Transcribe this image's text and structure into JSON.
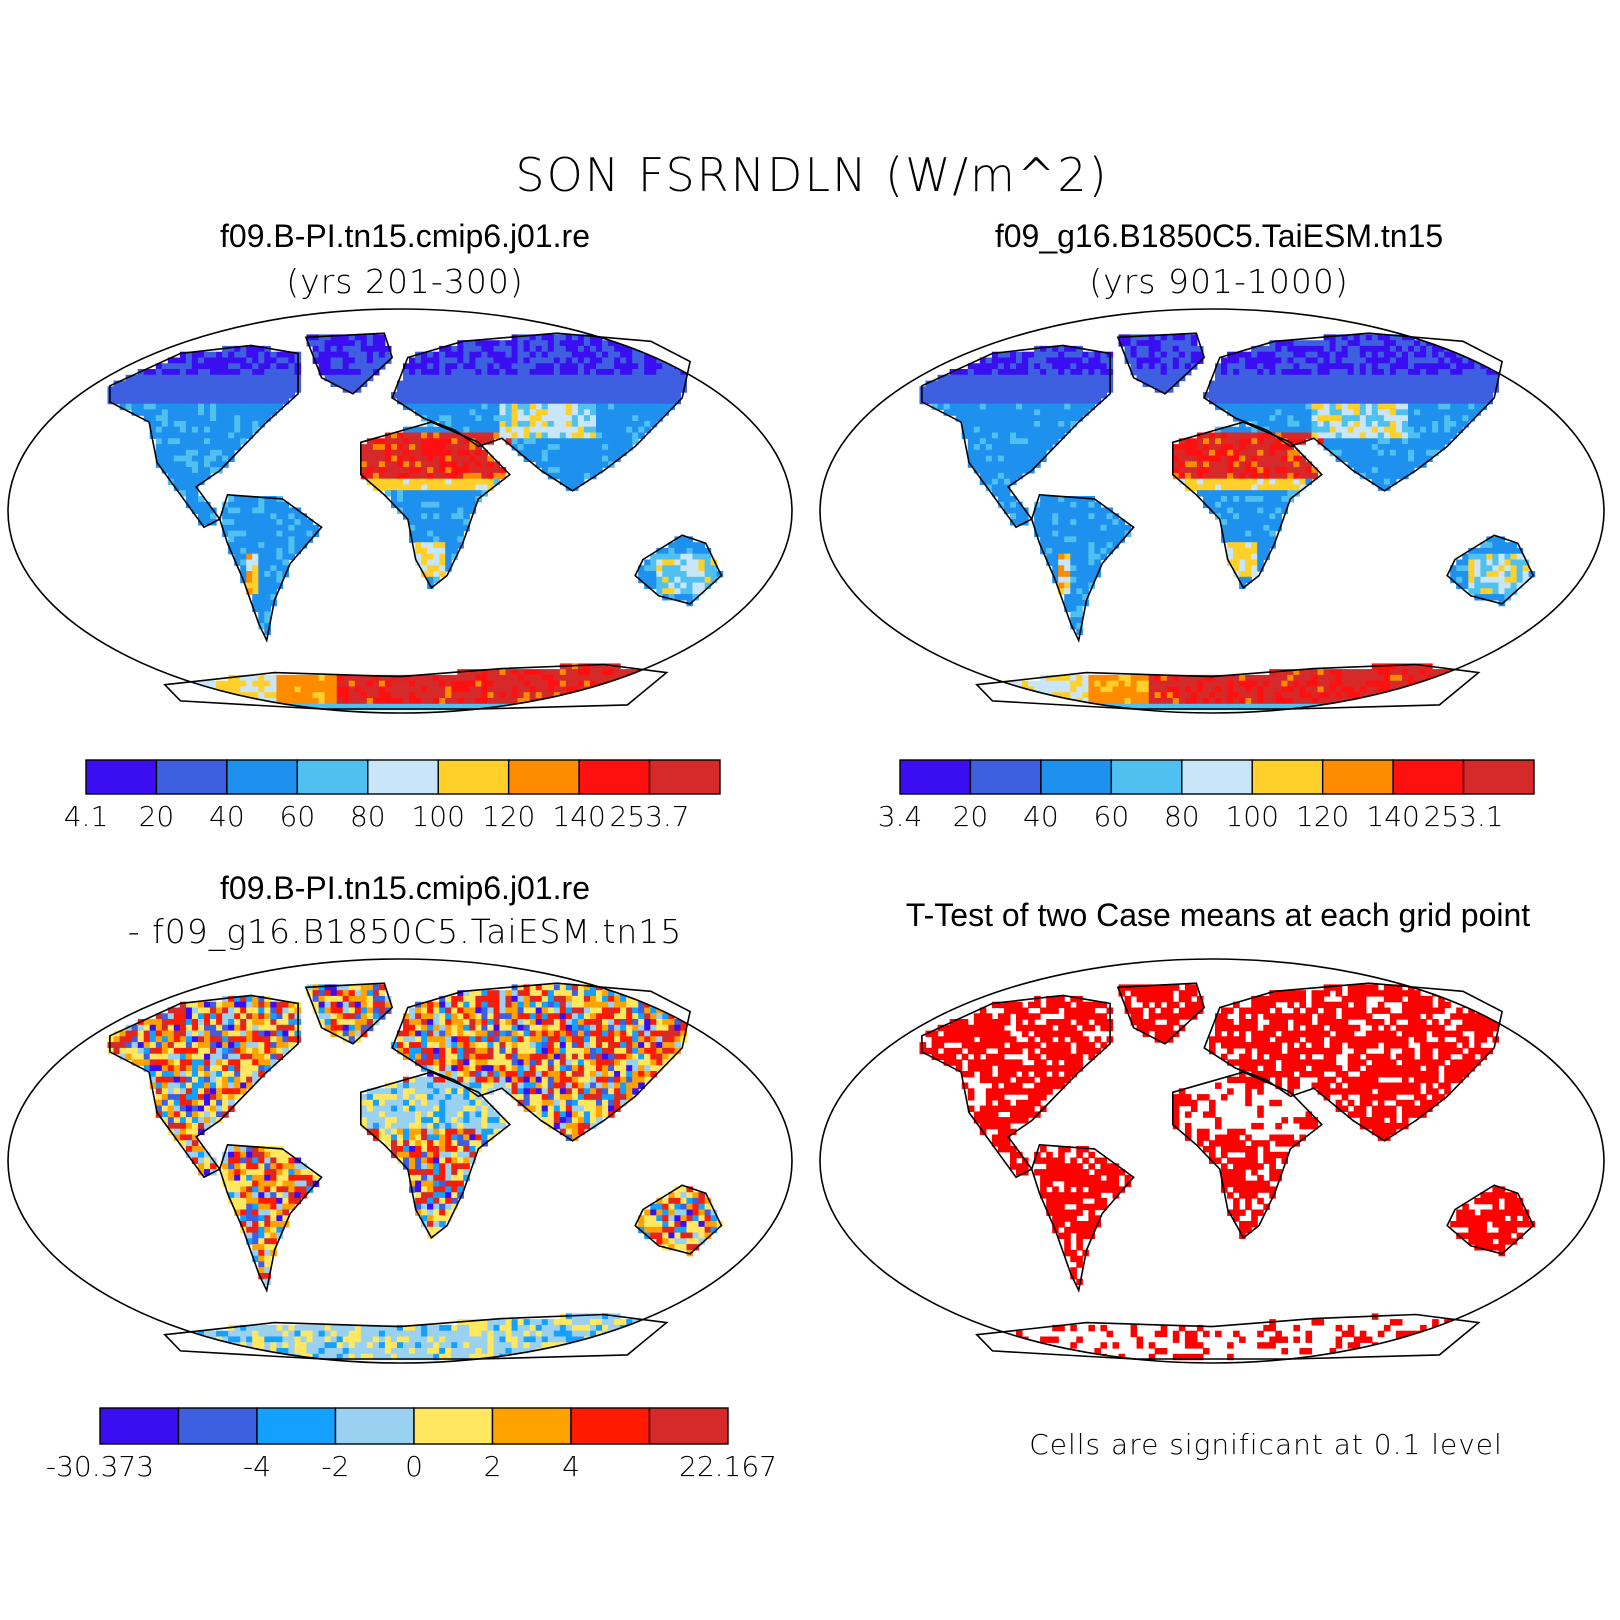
{
  "figure": {
    "title": "SON FSRNDLN (W/m^2)"
  },
  "panels": {
    "case1": {
      "title": "f09.B-PI.tn15.cmip6.j01.re",
      "subtitle": "(yrs 201-300)",
      "colorbar": {
        "colors": [
          "#3b0ef2",
          "#3d5fe0",
          "#1e90ee",
          "#4fc0f0",
          "#c8e6f7",
          "#ffd02a",
          "#ff8c00",
          "#ff1010",
          "#d62a2a"
        ],
        "ticks": [
          "4.1",
          "20",
          "40",
          "60",
          "80",
          "100",
          "120",
          "140",
          "253.7"
        ]
      }
    },
    "case2": {
      "title": "f09_g16.B1850C5.TaiESM.tn15",
      "subtitle": "(yrs 901-1000)",
      "colorbar": {
        "colors": [
          "#3b0ef2",
          "#3d5fe0",
          "#1e90ee",
          "#4fc0f0",
          "#c8e6f7",
          "#ffd02a",
          "#ff8c00",
          "#ff1010",
          "#d62a2a"
        ],
        "ticks": [
          "3.4",
          "20",
          "40",
          "60",
          "80",
          "100",
          "120",
          "140",
          "253.1"
        ]
      }
    },
    "diff": {
      "title": "f09.B-PI.tn15.cmip6.j01.re",
      "subtitle": "- f09_g16.B1850C5.TaiESM.tn15",
      "colorbar": {
        "colors": [
          "#3b0ef2",
          "#3d5fe0",
          "#14a0ff",
          "#9ad0f0",
          "#ffe860",
          "#ffa200",
          "#ff1a00",
          "#d62a2a"
        ],
        "ticks": [
          "-30.373",
          "",
          "-4",
          "-2",
          "0",
          "2",
          "4",
          "",
          "22.167"
        ]
      }
    },
    "ttest": {
      "title": "T-Test of two Case means at each grid point",
      "note": "Cells are significant at 0.1 level",
      "color": "#ff0000"
    }
  }
}
